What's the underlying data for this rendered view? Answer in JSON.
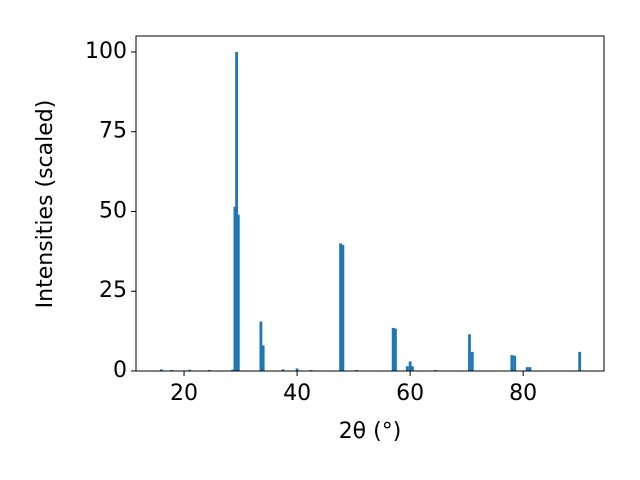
{
  "chart_data": {
    "type": "bar",
    "x_label": "2θ (°)",
    "y_label": "Intensities (scaled)",
    "x": [
      16.0,
      17.8,
      21.0,
      24.5,
      28.6,
      29.0,
      29.3,
      29.6,
      33.6,
      34.0,
      37.5,
      40.0,
      42.5,
      47.7,
      48.1,
      50.5,
      57.0,
      57.4,
      59.5,
      60.0,
      60.4,
      64.5,
      70.5,
      71.0,
      78.0,
      78.5,
      80.7,
      81.2,
      90.0
    ],
    "values": [
      0.5,
      0.3,
      0.4,
      0.3,
      0.4,
      51.5,
      100,
      49,
      15.5,
      8,
      0.5,
      0.8,
      0.3,
      40,
      39.5,
      0.3,
      13.5,
      13.3,
      1.5,
      3,
      1.5,
      0.3,
      11.5,
      6,
      5,
      4.8,
      1.2,
      1.2,
      6
    ],
    "color": "#1f77b4",
    "xlim": [
      11.5,
      94.3
    ],
    "xticks": [
      20,
      40,
      60,
      80
    ],
    "ylim": [
      0,
      105
    ],
    "yticks": [
      0,
      25,
      50,
      75,
      100
    ],
    "grid": false
  }
}
